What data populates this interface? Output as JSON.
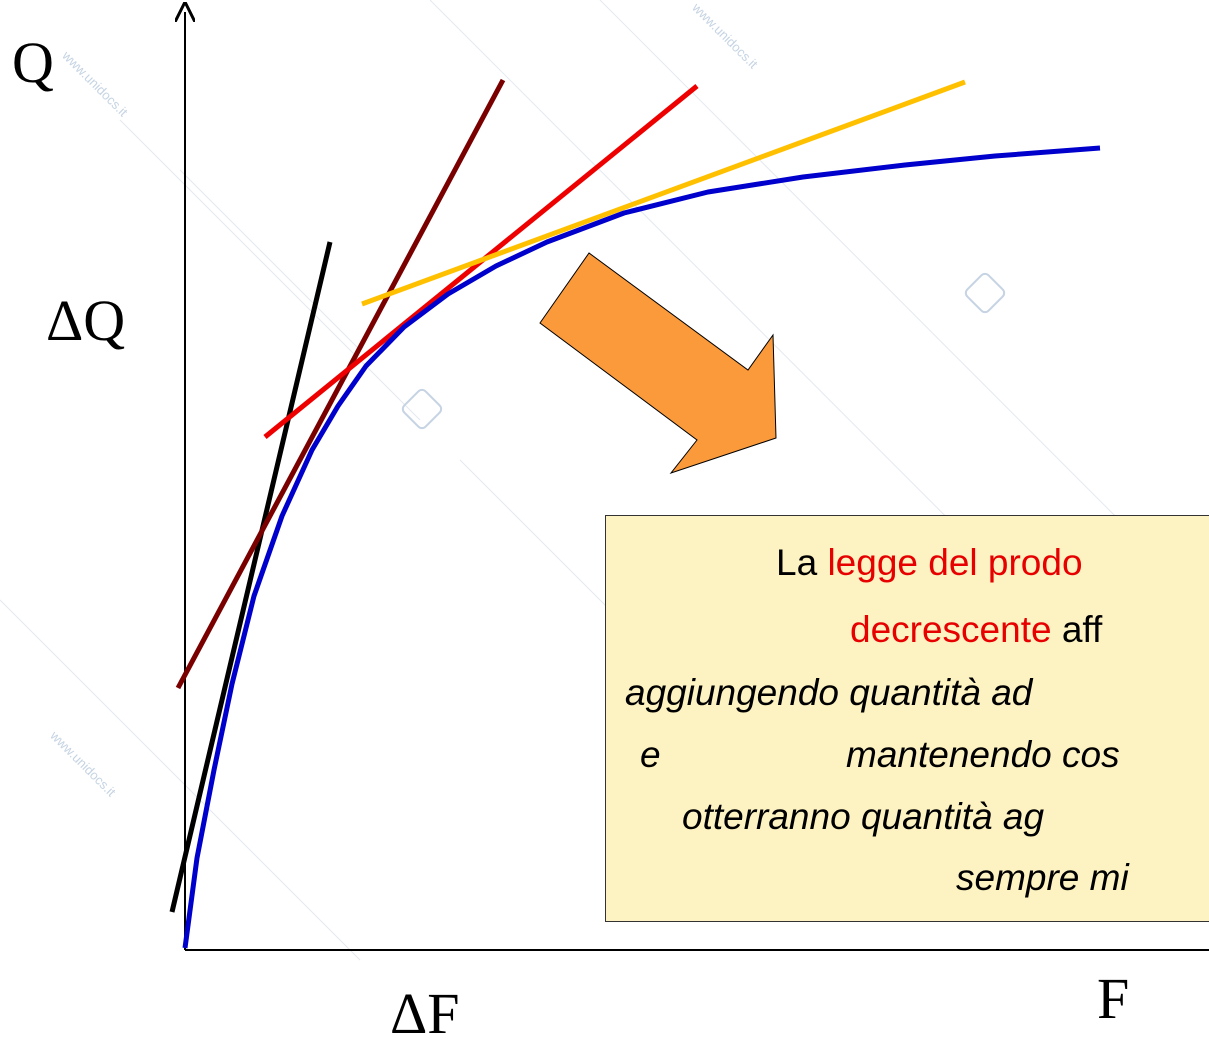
{
  "axes": {
    "y_label": "Q",
    "x_label": "F",
    "delta_y_label": "ΔQ",
    "delta_x_label": "ΔF"
  },
  "colors": {
    "curve": "#0000cc",
    "tangent_black": "#000000",
    "tangent_darkred": "#7a0000",
    "tangent_red": "#ee0000",
    "tangent_yellow": "#ffc000",
    "arrow": "#fb9a3b",
    "box_bg": "#fdf2c1",
    "highlight": "#e60000"
  },
  "watermark": "www.unidocs.it",
  "textbox": {
    "line1_prefix": "La ",
    "line1_highlight": "legge del prodo",
    "line2_highlight": "decrescente",
    "line2_suffix": " aff",
    "line3": "aggiungendo quantità ad",
    "line4_a": "e",
    "line4_b": "mantenendo cos",
    "line5": "otterranno quantità ag",
    "line6": "sempre mi"
  }
}
